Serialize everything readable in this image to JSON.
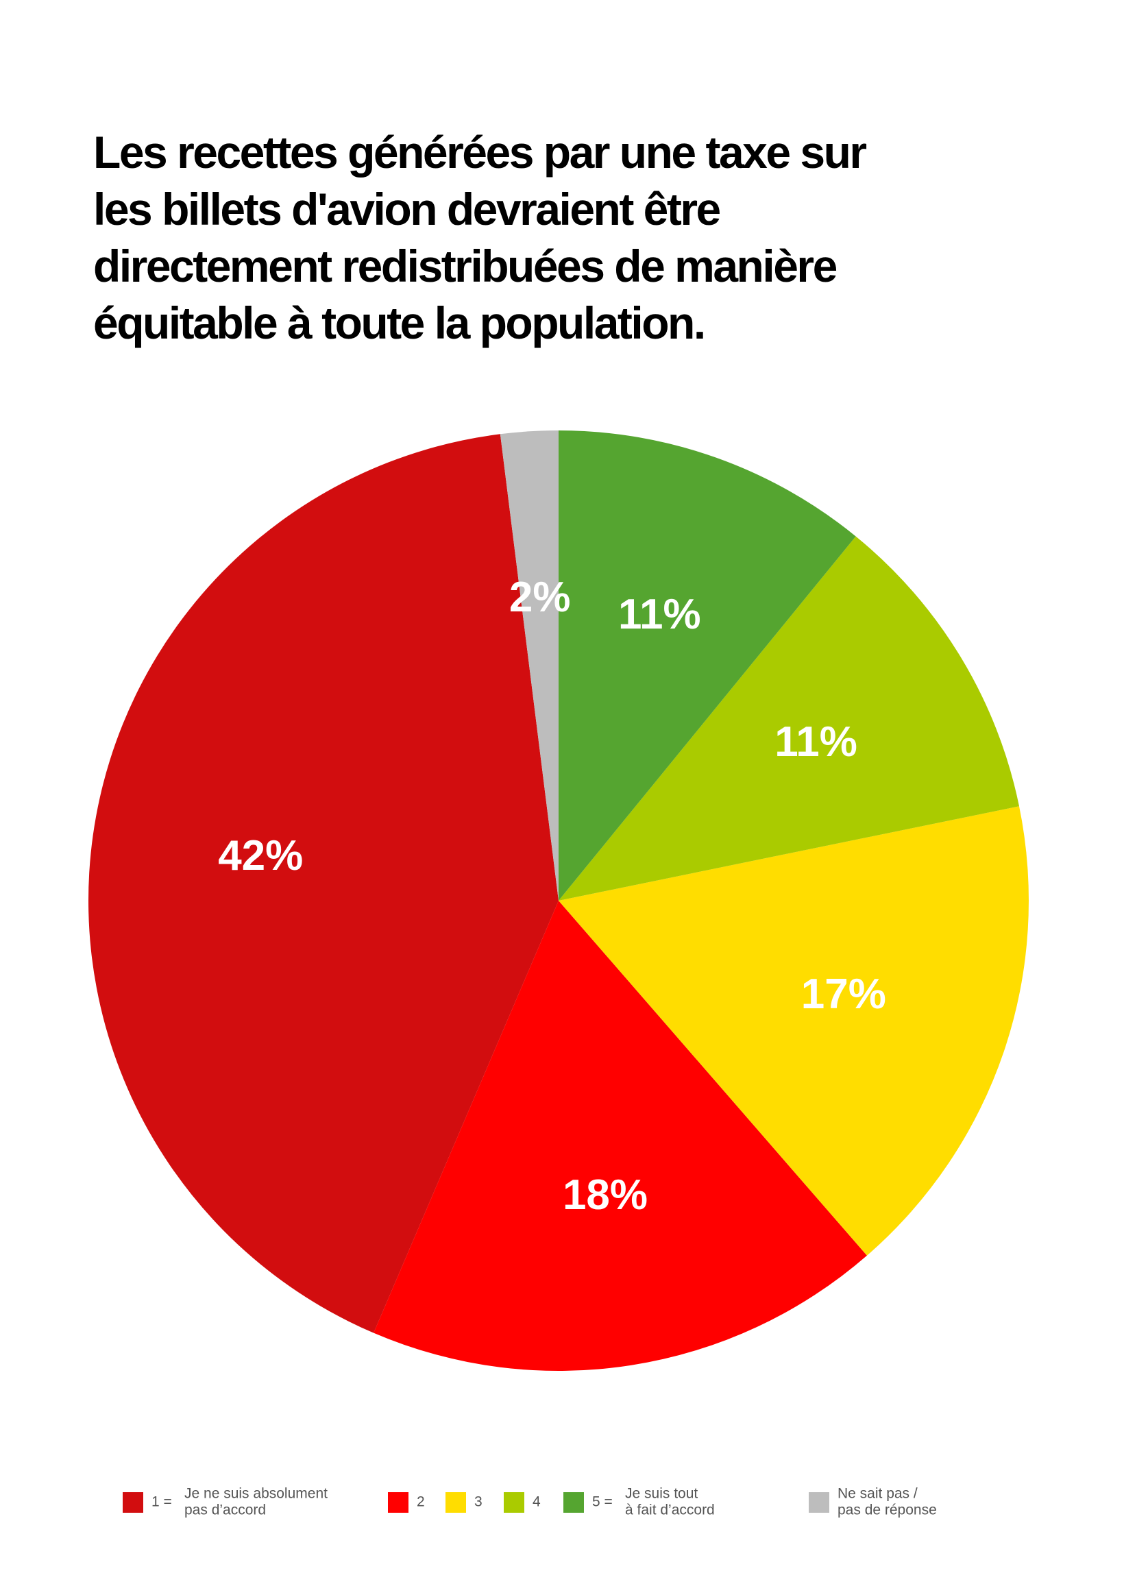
{
  "chart_data": {
    "type": "pie",
    "title": [
      "Les recettes générées par une taxe sur",
      "les billets d'avion devraient être",
      "directement redistribuées de manière",
      "équitable à toute la population."
    ],
    "categories": [
      {
        "key": "1 =",
        "label": [
          "Je ne suis absolument",
          "pas d’accord"
        ]
      },
      {
        "key": "2"
      },
      {
        "key": "3"
      },
      {
        "key": "4"
      },
      {
        "key": "5 =",
        "label": [
          "Je suis tout",
          "à fait d’accord"
        ]
      },
      {
        "label": [
          "Ne sait pas /",
          "pas de réponse"
        ]
      }
    ],
    "values": [
      42,
      18,
      17,
      11,
      11,
      2
    ],
    "value_labels": [
      "42%",
      "18%",
      "17%",
      "11%",
      "11%",
      "2%"
    ],
    "colors": [
      "#d20d0f",
      "#ff0000",
      "#ffdd00",
      "#aacb00",
      "#55a530",
      "#bdbdbd"
    ]
  }
}
